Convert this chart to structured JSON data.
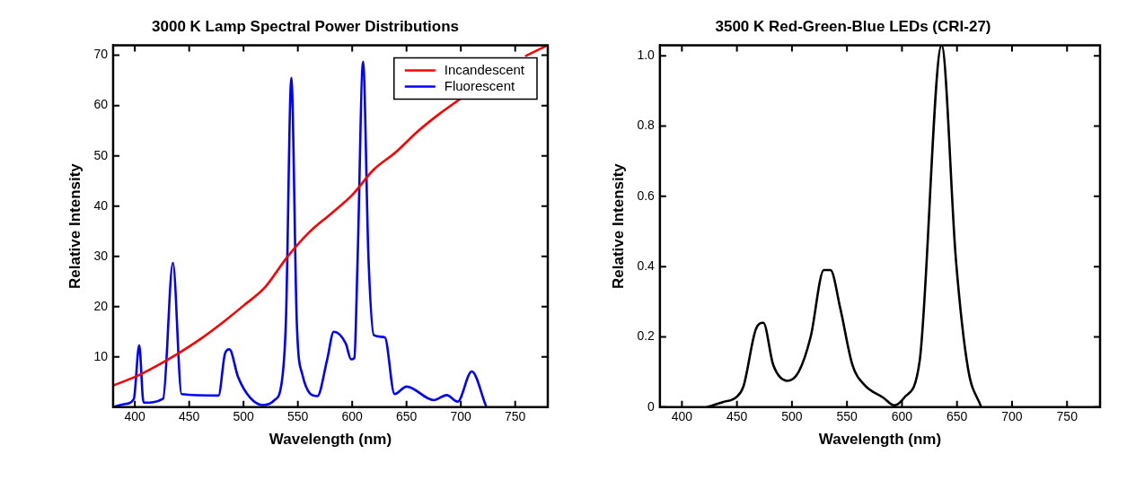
{
  "chart_data": [
    {
      "type": "line",
      "title": "3000 K Lamp Spectral Power Distributions",
      "xlabel": "Wavelength (nm)",
      "ylabel": "Relative Intensity",
      "xlim": [
        380,
        780
      ],
      "xticks": [
        400,
        450,
        500,
        550,
        600,
        650,
        700,
        750
      ],
      "ylim": [
        0,
        72
      ],
      "yticks": [
        10,
        20,
        30,
        40,
        50,
        60,
        70
      ],
      "grid": false,
      "legend": "top right",
      "marker": "none",
      "line_style": "solid",
      "series": [
        {
          "name": "Incandescent",
          "color": "#ff0000",
          "x": [
            380,
            400,
            420,
            440,
            460,
            480,
            500,
            520,
            540,
            560,
            580,
            600,
            620,
            640,
            660,
            680,
            700,
            720,
            740,
            760,
            780
          ],
          "values": [
            4.3,
            6.0,
            8.2,
            10.7,
            13.5,
            16.7,
            20.2,
            23.9,
            29.8,
            34.7,
            38.4,
            42.2,
            47.3,
            50.7,
            54.8,
            58.3,
            61.4,
            null,
            null,
            69.9,
            72
          ]
        },
        {
          "name": "Fluorescent",
          "color": "#0000ff",
          "x": [
            380,
            390,
            399,
            404,
            408,
            426,
            435,
            443,
            477,
            483,
            487,
            495,
            506,
            518,
            528,
            535,
            539,
            544,
            549,
            554,
            568,
            577,
            583,
            594,
            599,
            602,
            605,
            610,
            615,
            620,
            630,
            639,
            650,
            675,
            687,
            697,
            710,
            723
          ],
          "values": [
            0,
            0.6,
            1.6,
            12.3,
            0.9,
            1.7,
            28.7,
            2.6,
            2.3,
            10.7,
            11.5,
            6,
            1.9,
            0.4,
            1.3,
            4.7,
            17,
            65.5,
            17,
            6.6,
            2.2,
            9.5,
            15,
            12.7,
            9.5,
            9.8,
            29.6,
            68.7,
            29.6,
            14.3,
            13.9,
            2.6,
            4.1,
            1.4,
            2.4,
            1.1,
            7.1,
            0.3
          ]
        }
      ]
    },
    {
      "type": "line",
      "title": "3500 K Red-Green-Blue LEDs (CRI-27)",
      "xlabel": "Wavelength (nm)",
      "ylabel": "Relative Intensity",
      "xlim": [
        380,
        780
      ],
      "xticks": [
        400,
        450,
        500,
        550,
        600,
        650,
        700,
        750
      ],
      "ylim": [
        0,
        1.03
      ],
      "yticks": [
        0,
        0.2,
        0.4,
        0.6,
        0.8,
        {
          "value": 1,
          "label": "1.0"
        }
      ],
      "grid": false,
      "marker": "none",
      "line_style": "solid",
      "series": [
        {
          "color": "#000000",
          "x": [
            423,
            437,
            450,
            456,
            467,
            474,
            483,
            496,
            506,
            517,
            529,
            535,
            544,
            555,
            566,
            583,
            593,
            602,
            616,
            636,
            649,
            660,
            672
          ],
          "values": [
            0,
            0.014,
            0.03,
            0.06,
            0.22,
            0.24,
            0.12,
            0.075,
            0.1,
            0.2,
            0.39,
            0.39,
            0.28,
            0.12,
            0.063,
            0.027,
            0.005,
            0.027,
            0.13,
            1.03,
            0.42,
            0.11,
            0
          ]
        }
      ]
    }
  ]
}
